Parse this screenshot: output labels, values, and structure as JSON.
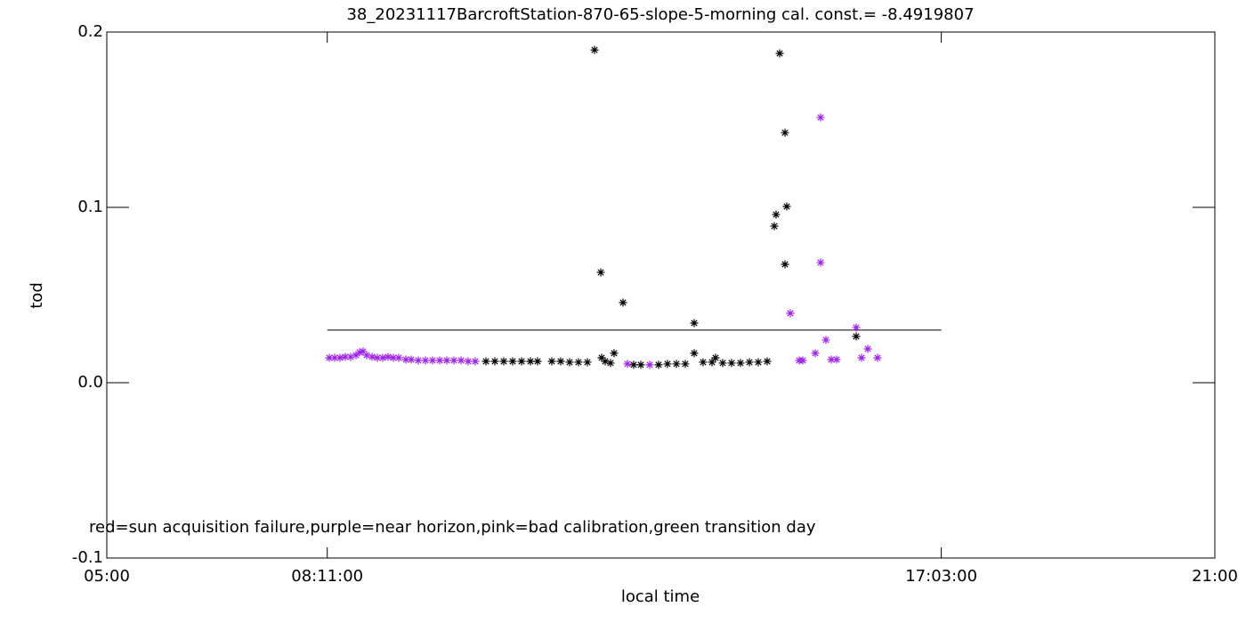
{
  "chart_data": {
    "type": "scatter",
    "title": "38_20231117BarcroftStation-870-65-slope-5-morning cal. const.= -8.4919807",
    "x_label": "local time",
    "y_label": "tod",
    "annotation": "red=sun acquisition failure,purple=near horizon,pink=bad calibration,green transition day",
    "xlim": [
      5,
      21
    ],
    "xticks": [
      {
        "value": 5,
        "label": "05:00"
      },
      {
        "value": 8.1833,
        "label": "08:11:00"
      },
      {
        "value": 17.05,
        "label": "17:03:00"
      },
      {
        "value": 21,
        "label": "21:00"
      }
    ],
    "ylim": [
      -0.1,
      0.2
    ],
    "yticks": [
      -0.1,
      {
        "value": 0,
        "label": "0.0"
      },
      0.1,
      0.2
    ],
    "reference_line": {
      "x": [
        8.1833,
        17.05
      ],
      "y": [
        0.03,
        0.03
      ],
      "color": "#000000"
    },
    "series": [
      {
        "color": "#000000",
        "x": [
          10.475,
          10.603,
          10.732,
          10.86,
          10.989,
          11.117,
          11.22,
          11.426,
          11.554,
          11.683,
          11.811,
          11.94,
          12.043,
          12.133,
          12.145,
          12.197,
          12.274,
          12.325,
          12.454,
          12.608,
          12.711,
          12.968,
          13.096,
          13.225,
          13.353,
          13.482,
          13.482,
          13.61,
          13.739,
          13.79,
          13.893,
          14.022,
          14.15,
          14.279,
          14.407,
          14.536,
          14.639,
          14.664,
          14.716,
          14.793,
          14.818,
          14.793,
          15.821
        ],
        "values": [
          0.0122,
          0.0122,
          0.0122,
          0.0122,
          0.0122,
          0.0122,
          0.0122,
          0.0122,
          0.0122,
          0.0117,
          0.0117,
          0.0117,
          0.1898,
          0.0629,
          0.0142,
          0.0122,
          0.0112,
          0.0168,
          0.0457,
          0.0102,
          0.0102,
          0.0102,
          0.0107,
          0.0107,
          0.0107,
          0.0168,
          0.034,
          0.0117,
          0.0117,
          0.0142,
          0.0112,
          0.0112,
          0.0112,
          0.0117,
          0.0117,
          0.0122,
          0.0893,
          0.0959,
          0.1878,
          0.1426,
          0.1005,
          0.0675,
          0.0264
        ]
      },
      {
        "color": "#a020f0",
        "x": [
          8.213,
          8.29,
          8.367,
          8.444,
          8.521,
          8.598,
          8.65,
          8.701,
          8.753,
          8.83,
          8.907,
          8.984,
          9.061,
          9.138,
          9.215,
          9.318,
          9.395,
          9.498,
          9.601,
          9.704,
          9.807,
          9.909,
          10.012,
          10.115,
          10.218,
          10.32,
          12.518,
          12.839,
          14.998,
          15.05,
          15.23,
          15.384,
          15.461,
          15.538,
          14.87,
          15.307,
          15.307,
          15.821,
          15.988,
          16.129,
          15.898
        ],
        "values": [
          0.0142,
          0.0142,
          0.0142,
          0.0147,
          0.0147,
          0.0157,
          0.0173,
          0.0178,
          0.0157,
          0.0147,
          0.0142,
          0.0142,
          0.0147,
          0.0142,
          0.0142,
          0.0132,
          0.0132,
          0.0127,
          0.0127,
          0.0127,
          0.0127,
          0.0127,
          0.0127,
          0.0127,
          0.0122,
          0.0122,
          0.0107,
          0.0102,
          0.0127,
          0.0127,
          0.0168,
          0.0244,
          0.0132,
          0.0132,
          0.0396,
          0.0685,
          0.1513,
          0.0315,
          0.0193,
          0.0142,
          0.0142
        ]
      }
    ]
  }
}
